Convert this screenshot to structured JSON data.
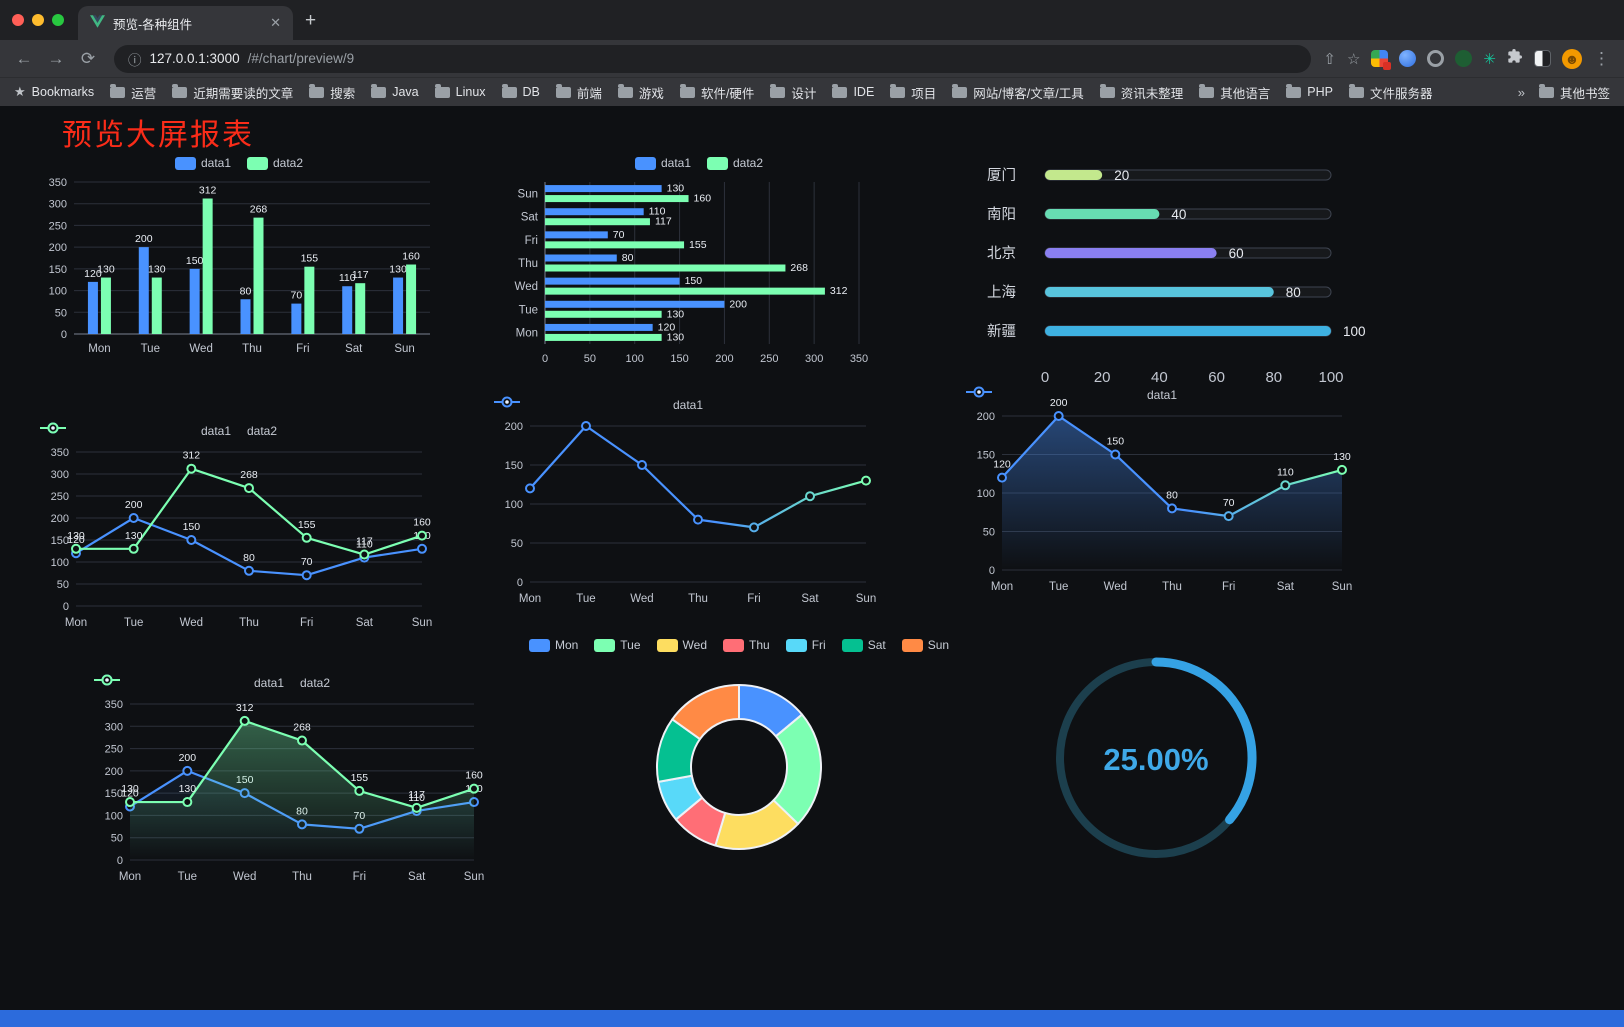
{
  "browser": {
    "tab_title": "预览-各种组件",
    "url_host": "127.0.0.1:3000",
    "url_path": "/#/chart/preview/9",
    "bookmarks_label": "Bookmarks",
    "bookmarks": [
      "运营",
      "近期需要读的文章",
      "搜索",
      "Java",
      "Linux",
      "DB",
      "前端",
      "游戏",
      "软件/硬件",
      "设计",
      "IDE",
      "项目",
      "网站/博客/文章/工具",
      "资讯未整理",
      "其他语言",
      "PHP",
      "文件服务器"
    ],
    "overflow_chevron": "»",
    "other_bookmarks": "其他书签"
  },
  "icons": {
    "back": "←",
    "forward": "→",
    "reload": "⟳",
    "info": "ⓘ",
    "share": "⇧",
    "star": "☆",
    "ext_star": "✳",
    "avatar": "☻",
    "kebab": "⋮",
    "close": "✕",
    "plus": "+",
    "bookmark_star": "★"
  },
  "page": {
    "title": "预览大屏报表"
  },
  "colors": {
    "grid": "#2c313b",
    "axis": "#7b8292",
    "tick": "#c2c7d1",
    "vlabel": "#e9edf3",
    "bg": "#0e1013"
  },
  "chart_data": [
    {
      "id": "grouped-bar",
      "type": "bar",
      "categories": [
        "Mon",
        "Tue",
        "Wed",
        "Thu",
        "Fri",
        "Sat",
        "Sun"
      ],
      "series": [
        {
          "name": "data1",
          "color": "#4992ff",
          "values": [
            120,
            200,
            150,
            80,
            70,
            110,
            130
          ]
        },
        {
          "name": "data2",
          "color": "#7cffb2",
          "values": [
            130,
            130,
            312,
            268,
            155,
            117,
            160
          ]
        }
      ],
      "ylim": [
        0,
        350
      ],
      "ytick_step": 50,
      "legend_position": "top",
      "grid": true
    },
    {
      "id": "horizontal-bar",
      "type": "bar-horizontal",
      "categories": [
        "Mon",
        "Tue",
        "Wed",
        "Thu",
        "Fri",
        "Sat",
        "Sun"
      ],
      "series": [
        {
          "name": "data1",
          "color": "#4992ff",
          "values": [
            120,
            200,
            150,
            80,
            70,
            110,
            130
          ]
        },
        {
          "name": "data2",
          "color": "#7cffb2",
          "values": [
            130,
            130,
            312,
            268,
            155,
            117,
            160
          ]
        }
      ],
      "xlim": [
        0,
        350
      ],
      "xtick_step": 50,
      "legend_position": "top",
      "grid": true
    },
    {
      "id": "city-progress",
      "type": "progress",
      "max": 100,
      "xticks": [
        0,
        20,
        40,
        60,
        80,
        100
      ],
      "rows": [
        {
          "label": "厦门",
          "value": 20,
          "color": "#c3e88d"
        },
        {
          "label": "南阳",
          "value": 40,
          "color": "#67dcb3"
        },
        {
          "label": "北京",
          "value": 60,
          "color": "#8a7ff0"
        },
        {
          "label": "上海",
          "value": 80,
          "color": "#58c4dd"
        },
        {
          "label": "新疆",
          "value": 100,
          "color": "#3eb1e1"
        }
      ]
    },
    {
      "id": "multi-line",
      "type": "line",
      "labels": true,
      "categories": [
        "Mon",
        "Tue",
        "Wed",
        "Thu",
        "Fri",
        "Sat",
        "Sun"
      ],
      "series": [
        {
          "name": "data1",
          "color": "#4992ff",
          "values": [
            120,
            200,
            150,
            80,
            70,
            110,
            130
          ]
        },
        {
          "name": "data2",
          "color": "#7cffb2",
          "values": [
            130,
            130,
            312,
            268,
            155,
            117,
            160
          ]
        }
      ],
      "ylim": [
        0,
        350
      ],
      "ytick_step": 50,
      "legend_position": "top",
      "grid": true
    },
    {
      "id": "gradient-line",
      "type": "line",
      "labels": false,
      "categories": [
        "Mon",
        "Tue",
        "Wed",
        "Thu",
        "Fri",
        "Sat",
        "Sun"
      ],
      "series": [
        {
          "name": "data1",
          "gradient": [
            "#4992ff",
            "#7cffb2"
          ],
          "values": [
            120,
            200,
            150,
            80,
            70,
            110,
            130
          ]
        }
      ],
      "ylim": [
        0,
        200
      ],
      "ytick_step": 50,
      "legend_position": "top",
      "grid": true
    },
    {
      "id": "gradient-area-line",
      "type": "line",
      "labels": true,
      "categories": [
        "Mon",
        "Tue",
        "Wed",
        "Thu",
        "Fri",
        "Sat",
        "Sun"
      ],
      "series": [
        {
          "name": "data1",
          "gradient": [
            "#4992ff",
            "#7cffb2"
          ],
          "area": true,
          "area_opacity": 0.42,
          "values": [
            120,
            200,
            150,
            80,
            70,
            110,
            130
          ]
        }
      ],
      "ylim": [
        0,
        200
      ],
      "ytick_step": 50,
      "legend_position": "top",
      "grid": true
    },
    {
      "id": "multi-area-line",
      "type": "line",
      "labels": true,
      "categories": [
        "Mon",
        "Tue",
        "Wed",
        "Thu",
        "Fri",
        "Sat",
        "Sun"
      ],
      "series": [
        {
          "name": "data1",
          "color": "#4992ff",
          "area": true,
          "area_opacity": 0.15,
          "values": [
            120,
            200,
            150,
            80,
            70,
            110,
            130
          ]
        },
        {
          "name": "data2",
          "color": "#7cffb2",
          "area": true,
          "area_opacity": 0.38,
          "values": [
            130,
            130,
            312,
            268,
            155,
            117,
            160
          ]
        }
      ],
      "ylim": [
        0,
        350
      ],
      "ytick_step": 50,
      "legend_position": "top",
      "grid": true
    },
    {
      "id": "donut",
      "type": "pie",
      "categories": [
        "Mon",
        "Tue",
        "Wed",
        "Thu",
        "Fri",
        "Sat",
        "Sun"
      ],
      "values": [
        120,
        200,
        150,
        80,
        70,
        110,
        130
      ],
      "colors": [
        "#4992ff",
        "#7cffb2",
        "#fddd60",
        "#ff6e76",
        "#58d9f9",
        "#05c091",
        "#ff8a45"
      ],
      "inner_radius": 48,
      "outer_radius": 82,
      "legend_position": "top"
    },
    {
      "id": "gauge",
      "type": "gauge",
      "value": 25,
      "display": "25.00%",
      "sweep_deg": 130,
      "arc_color": "#35a2e4",
      "track_color": "#1c3f4d",
      "text_color": "#3fa9e8"
    }
  ]
}
